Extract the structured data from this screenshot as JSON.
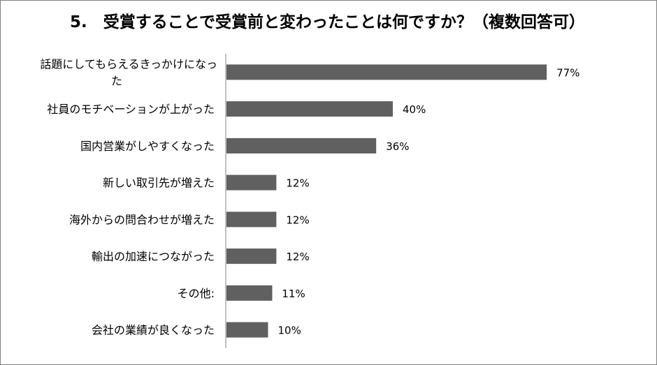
{
  "chart_data": {
    "type": "bar",
    "orientation": "horizontal",
    "title": "5.　受賞することで受賞前と変わったことは何ですか？（複数回答可）",
    "categories": [
      "話題にしてもらえるきっかけになった",
      "社員のモチベーションが上がった",
      "国内営業がしやすくなった",
      "新しい取引先が増えた",
      "海外からの問合わせが増えた",
      "輸出の加速につながった",
      "その他:",
      "会社の業績が良くなった"
    ],
    "category_lines": [
      [
        "話題にしてもらえるきっかけになっ",
        "た"
      ],
      [
        "社員のモチベーションが上がった"
      ],
      [
        "国内営業がしやすくなった"
      ],
      [
        "新しい取引先が増えた"
      ],
      [
        "海外からの問合わせが増えた"
      ],
      [
        "輸出の加速につながった"
      ],
      [
        "その他:"
      ],
      [
        "会社の業績が良くなった"
      ]
    ],
    "values": [
      77,
      40,
      36,
      12,
      12,
      12,
      11,
      10
    ],
    "value_labels": [
      "77%",
      "40%",
      "36%",
      "12%",
      "12%",
      "12%",
      "11%",
      "10%"
    ],
    "unit": "%",
    "xlim": [
      0,
      80
    ],
    "xlabel": "",
    "ylabel": "",
    "grid": false,
    "legend": "none",
    "bar_color": "#606060",
    "axis_color": "#808080"
  }
}
